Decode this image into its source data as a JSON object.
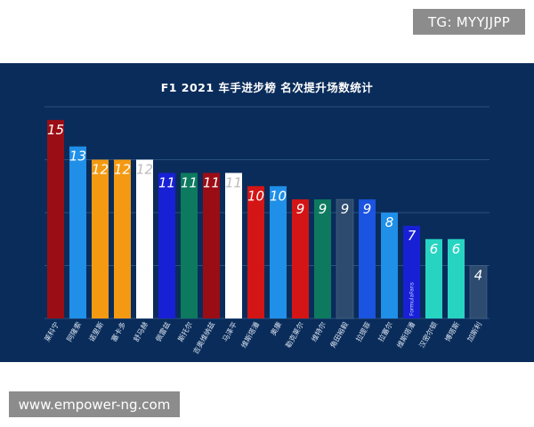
{
  "watermark_top": "TG: MYYJJPP",
  "watermark_bottom": "www.empower-ng.com",
  "chart_data": {
    "type": "bar",
    "title": "F1 2021 车手进步榜 名次提升场数统计",
    "xlabel": "",
    "ylabel": "",
    "ylim": [
      0,
      15
    ],
    "grid": true,
    "legend": "none",
    "background": "#0a2c5a",
    "categories": [
      "莱科宁",
      "阿隆索",
      "诺里斯",
      "塞卡多",
      "舒马赫",
      "佩雷兹",
      "斯托尔",
      "吉奥维纳兹",
      "马泽平",
      "维斯塔潘",
      "奥康",
      "勒克莱尔",
      "维特尔",
      "角田裕毅",
      "拉提菲",
      "拉塞尔",
      "维斯塔潘",
      "汉密尔顿",
      "博塔斯",
      "加斯利"
    ],
    "values": [
      15,
      13,
      12,
      12,
      12,
      11,
      11,
      11,
      11,
      10,
      10,
      9,
      9,
      9,
      9,
      8,
      7,
      6,
      6,
      4
    ],
    "colors": [
      "#9b0d15",
      "#1f8fe8",
      "#f39a12",
      "#f39a12",
      "#ffffff",
      "#1820d6",
      "#0d7a5f",
      "#9b0d15",
      "#ffffff",
      "#d41515",
      "#1f8fe8",
      "#d41515",
      "#0d7a5f",
      "#2d4b6e",
      "#1b54e0",
      "#1f8fe8",
      "#1820d6",
      "#27d4c2",
      "#27d4c2",
      "#2d4b6e"
    ],
    "label_colors": [
      "#ffffff",
      "#ffffff",
      "#ffffff",
      "#ffffff",
      "#bbbbbb",
      "#ffffff",
      "#ffffff",
      "#ffffff",
      "#bbbbbb",
      "#ffffff",
      "#ffffff",
      "#ffffff",
      "#ffffff",
      "#ffffff",
      "#ffffff",
      "#ffffff",
      "#ffffff",
      "#ffffff",
      "#ffffff",
      "#ffffff"
    ],
    "bar_inner_text": {
      "index": 16,
      "text": "FormulaFans"
    }
  }
}
